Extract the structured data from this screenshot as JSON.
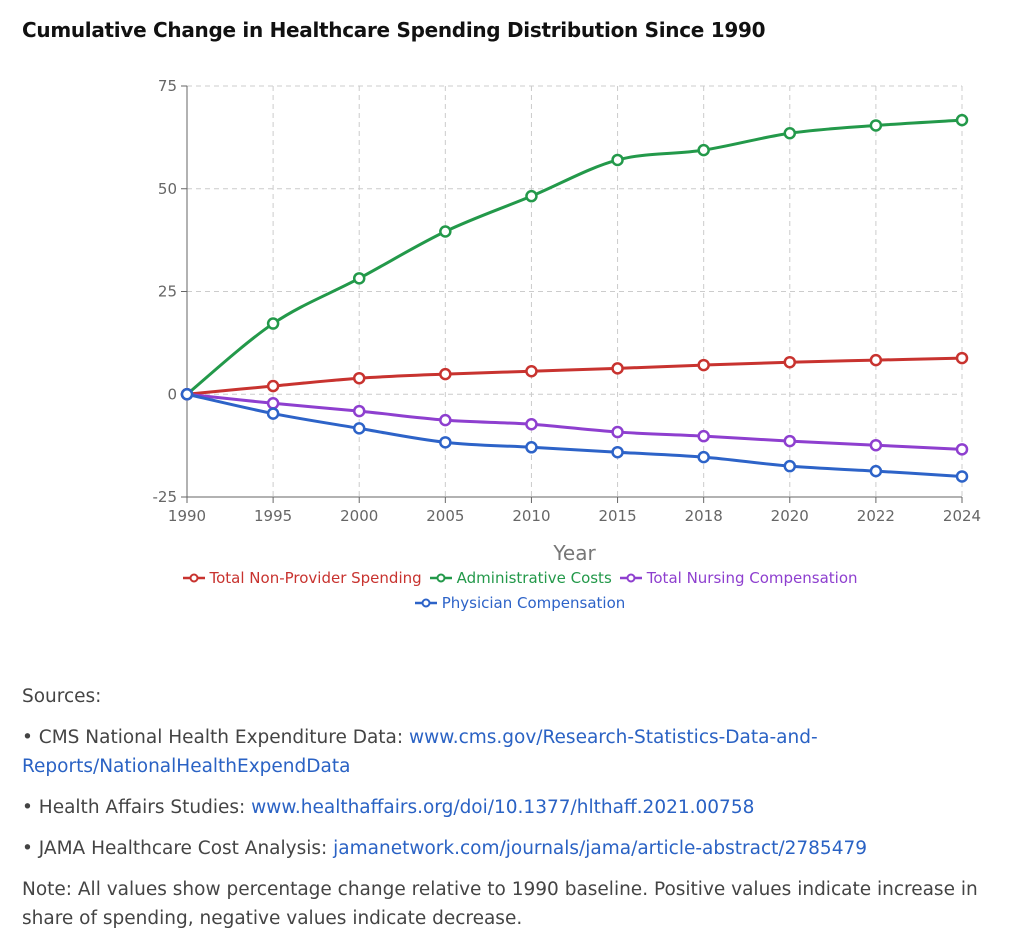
{
  "title": "Cumulative Change in Healthcare Spending Distribution Since 1990",
  "chart_data": {
    "type": "line",
    "xlabel": "Year",
    "ylabel": "",
    "categories": [
      "1990",
      "1995",
      "2000",
      "2005",
      "2010",
      "2015",
      "2018",
      "2020",
      "2022",
      "2024"
    ],
    "ylim": [
      -25,
      75
    ],
    "yticks": [
      -25,
      0,
      25,
      50,
      75
    ],
    "grid": true,
    "legend_position": "bottom",
    "series": [
      {
        "name": "Total Non-Provider Spending",
        "color": "#c8332f",
        "values": [
          0,
          2,
          3.9,
          4.9,
          5.6,
          6.3,
          7.1,
          7.8,
          8.3,
          8.8
        ]
      },
      {
        "name": "Administrative Costs",
        "color": "#23994a",
        "values": [
          0,
          17.2,
          28.2,
          39.6,
          48.2,
          57,
          59.4,
          63.5,
          65.4,
          66.7
        ]
      },
      {
        "name": "Total Nursing Compensation",
        "color": "#8e3fcf",
        "values": [
          0,
          -2.2,
          -4.1,
          -6.3,
          -7.3,
          -9.2,
          -10.2,
          -11.4,
          -12.4,
          -13.4
        ]
      },
      {
        "name": "Physician Compensation",
        "color": "#2d63c8",
        "values": [
          0,
          -4.7,
          -8.3,
          -11.7,
          -12.9,
          -14.1,
          -15.3,
          -17.5,
          -18.7,
          -20
        ]
      }
    ]
  },
  "sources": {
    "heading": "Sources:",
    "items": [
      {
        "label": "• CMS National Health Expenditure Data: ",
        "link": "www.cms.gov/Research-Statistics-Data-and-Reports/NationalHealthExpendData"
      },
      {
        "label": "• Health Affairs Studies: ",
        "link": "www.healthaffairs.org/doi/10.1377/hlthaff.2021.00758"
      },
      {
        "label": "• JAMA Healthcare Cost Analysis: ",
        "link": "jamanetwork.com/journals/jama/article-abstract/2785479"
      }
    ],
    "note": "Note: All values show percentage change relative to 1990 baseline. Positive values indicate increase in share of spending, negative values indicate decrease."
  }
}
